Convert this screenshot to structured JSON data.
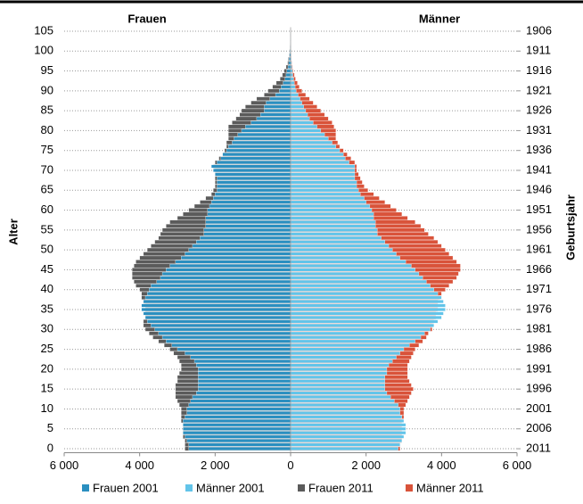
{
  "chart_data": {
    "type": "bar",
    "orientation": "horizontal",
    "left_label": "Frauen",
    "right_label": "Männer",
    "ylabel": "Alter",
    "y2label": "Geburtsjahr",
    "xlim": [
      -6000,
      6000
    ],
    "xticks": [
      {
        "value": -6000,
        "label": "6 000"
      },
      {
        "value": -4000,
        "label": "4 000"
      },
      {
        "value": -2000,
        "label": "2 000"
      },
      0,
      {
        "value": 2000,
        "label": "2 000"
      },
      {
        "value": 4000,
        "label": "4 000"
      },
      {
        "value": 6000,
        "label": "6 000"
      }
    ],
    "ylim": [
      -1,
      106
    ],
    "yticks": [
      0,
      5,
      10,
      15,
      20,
      25,
      30,
      35,
      40,
      45,
      50,
      55,
      60,
      65,
      70,
      75,
      80,
      85,
      90,
      95,
      100,
      105
    ],
    "y2lim": [
      -1,
      106
    ],
    "y2ticks": [
      {
        "value": 0,
        "label": "2011"
      },
      {
        "value": 5,
        "label": "2006"
      },
      {
        "value": 10,
        "label": "2001"
      },
      {
        "value": 15,
        "label": "1996"
      },
      {
        "value": 20,
        "label": "1991"
      },
      {
        "value": 25,
        "label": "1986"
      },
      {
        "value": 30,
        "label": "1981"
      },
      {
        "value": 35,
        "label": "1976"
      },
      {
        "value": 40,
        "label": "1971"
      },
      {
        "value": 45,
        "label": "1966"
      },
      {
        "value": 50,
        "label": "1961"
      },
      {
        "value": 55,
        "label": "1956"
      },
      {
        "value": 60,
        "label": "1951"
      },
      {
        "value": 65,
        "label": "1946"
      },
      {
        "value": 70,
        "label": "1941"
      },
      {
        "value": 75,
        "label": "1936"
      },
      {
        "value": 80,
        "label": "1931"
      },
      {
        "value": 85,
        "label": "1926"
      },
      {
        "value": 90,
        "label": "1921"
      },
      {
        "value": 95,
        "label": "1916"
      },
      {
        "value": 100,
        "label": "1911"
      },
      {
        "value": 105,
        "label": "1906"
      }
    ],
    "grid": true,
    "legend": "bottom",
    "y": [
      0,
      1,
      2,
      3,
      4,
      5,
      6,
      7,
      8,
      9,
      10,
      11,
      12,
      13,
      14,
      15,
      16,
      17,
      18,
      19,
      20,
      21,
      22,
      23,
      24,
      25,
      26,
      27,
      28,
      29,
      30,
      31,
      32,
      33,
      34,
      35,
      36,
      37,
      38,
      39,
      40,
      41,
      42,
      43,
      44,
      45,
      46,
      47,
      48,
      49,
      50,
      51,
      52,
      53,
      54,
      55,
      56,
      57,
      58,
      59,
      60,
      61,
      62,
      63,
      64,
      65,
      66,
      67,
      68,
      69,
      70,
      71,
      72,
      73,
      74,
      75,
      76,
      77,
      78,
      79,
      80,
      81,
      82,
      83,
      84,
      85,
      86,
      87,
      88,
      89,
      90,
      91,
      92,
      93,
      94,
      95,
      96,
      97,
      98,
      99,
      100,
      101,
      102,
      103,
      104,
      105
    ],
    "series": [
      {
        "name": "Frauen 2001",
        "color": "#2a8fc0",
        "year": 2001,
        "values": [
          -2700,
          -2700,
          -2750,
          -2800,
          -2850,
          -2850,
          -2850,
          -2850,
          -2800,
          -2750,
          -2750,
          -2700,
          -2650,
          -2600,
          -2500,
          -2450,
          -2450,
          -2450,
          -2450,
          -2450,
          -2450,
          -2500,
          -2550,
          -2650,
          -2800,
          -3000,
          -3150,
          -3300,
          -3400,
          -3500,
          -3600,
          -3700,
          -3800,
          -3850,
          -3900,
          -3950,
          -3950,
          -3900,
          -3850,
          -3800,
          -3750,
          -3700,
          -3550,
          -3450,
          -3400,
          -3300,
          -3200,
          -3050,
          -2900,
          -2800,
          -2700,
          -2600,
          -2500,
          -2400,
          -2300,
          -2300,
          -2250,
          -2250,
          -2250,
          -2200,
          -2200,
          -2150,
          -2100,
          -2050,
          -2000,
          -1950,
          -1950,
          -1950,
          -1950,
          -2000,
          -2050,
          -2100,
          -1950,
          -1850,
          -1800,
          -1700,
          -1650,
          -1550,
          -1500,
          -1400,
          -1300,
          -1200,
          -1050,
          -900,
          -800,
          -700,
          -700,
          -650,
          -550,
          -400,
          -300,
          -250,
          -200,
          -150,
          -120,
          -100,
          -70,
          -50,
          -40,
          -30,
          -20,
          -10,
          -5,
          -5,
          -3,
          -2
        ]
      },
      {
        "name": "Männer 2001",
        "color": "#62c4e9",
        "year": 2001,
        "values": [
          2850,
          2900,
          2950,
          3000,
          3050,
          3050,
          3050,
          3000,
          2950,
          2900,
          2900,
          2850,
          2750,
          2650,
          2550,
          2500,
          2500,
          2500,
          2500,
          2550,
          2550,
          2600,
          2700,
          2800,
          2900,
          3000,
          3150,
          3300,
          3450,
          3550,
          3700,
          3800,
          3900,
          4000,
          4050,
          4100,
          4100,
          4050,
          4000,
          3900,
          3800,
          3700,
          3600,
          3500,
          3400,
          3300,
          3200,
          3050,
          2900,
          2800,
          2700,
          2600,
          2500,
          2400,
          2300,
          2300,
          2250,
          2250,
          2200,
          2200,
          2150,
          2100,
          2000,
          1950,
          1850,
          1800,
          1750,
          1750,
          1700,
          1700,
          1700,
          1700,
          1550,
          1450,
          1400,
          1300,
          1200,
          1100,
          1000,
          900,
          800,
          700,
          600,
          500,
          450,
          400,
          350,
          300,
          250,
          200,
          150,
          120,
          100,
          80,
          60,
          50,
          35,
          25,
          15,
          10,
          8,
          5,
          3,
          2,
          1,
          1
        ]
      },
      {
        "name": "Frauen 2011",
        "color": "#5b5b5b",
        "year": 2011,
        "values": [
          -2800,
          -2800,
          -2800,
          -2850,
          -2850,
          -2850,
          -2850,
          -2900,
          -2900,
          -2900,
          -2900,
          -2950,
          -3000,
          -3050,
          -3050,
          -3050,
          -3050,
          -3000,
          -3000,
          -2950,
          -2900,
          -2900,
          -2950,
          -3000,
          -3100,
          -3200,
          -3350,
          -3500,
          -3650,
          -3750,
          -3850,
          -3900,
          -3900,
          -3850,
          -3850,
          -3850,
          -3850,
          -3900,
          -3950,
          -3950,
          -4000,
          -4100,
          -4150,
          -4200,
          -4200,
          -4200,
          -4150,
          -4100,
          -4000,
          -3900,
          -3800,
          -3700,
          -3600,
          -3500,
          -3450,
          -3400,
          -3300,
          -3200,
          -3000,
          -2850,
          -2700,
          -2550,
          -2400,
          -2250,
          -2100,
          -2050,
          -2000,
          -2000,
          -2000,
          -2000,
          -2000,
          -2050,
          -2000,
          -1900,
          -1800,
          -1750,
          -1700,
          -1700,
          -1650,
          -1650,
          -1650,
          -1650,
          -1550,
          -1450,
          -1350,
          -1300,
          -1200,
          -1050,
          -900,
          -700,
          -600,
          -480,
          -380,
          -280,
          -220,
          -170,
          -120,
          -80,
          -60,
          -40,
          -30,
          -15,
          -10,
          -5,
          -3,
          -2
        ]
      },
      {
        "name": "Männer 2011",
        "color": "#d9533a",
        "year": 2011,
        "values": [
          2900,
          2900,
          2950,
          2950,
          2950,
          2950,
          2950,
          2950,
          3000,
          3000,
          3000,
          3050,
          3100,
          3150,
          3200,
          3250,
          3200,
          3150,
          3100,
          3100,
          3100,
          3100,
          3150,
          3200,
          3250,
          3300,
          3400,
          3500,
          3600,
          3650,
          3750,
          3750,
          3800,
          3850,
          3850,
          3900,
          3900,
          3900,
          3950,
          4000,
          4100,
          4200,
          4300,
          4400,
          4450,
          4500,
          4500,
          4400,
          4300,
          4200,
          4100,
          4000,
          3900,
          3800,
          3650,
          3550,
          3450,
          3300,
          3100,
          2950,
          2800,
          2650,
          2500,
          2350,
          2200,
          2050,
          1950,
          1900,
          1850,
          1800,
          1750,
          1750,
          1700,
          1600,
          1500,
          1400,
          1300,
          1250,
          1200,
          1200,
          1200,
          1150,
          1100,
          1000,
          900,
          800,
          700,
          600,
          500,
          400,
          300,
          230,
          180,
          130,
          100,
          70,
          50,
          35,
          20,
          15,
          10,
          5,
          3,
          2,
          1,
          1
        ]
      }
    ]
  }
}
